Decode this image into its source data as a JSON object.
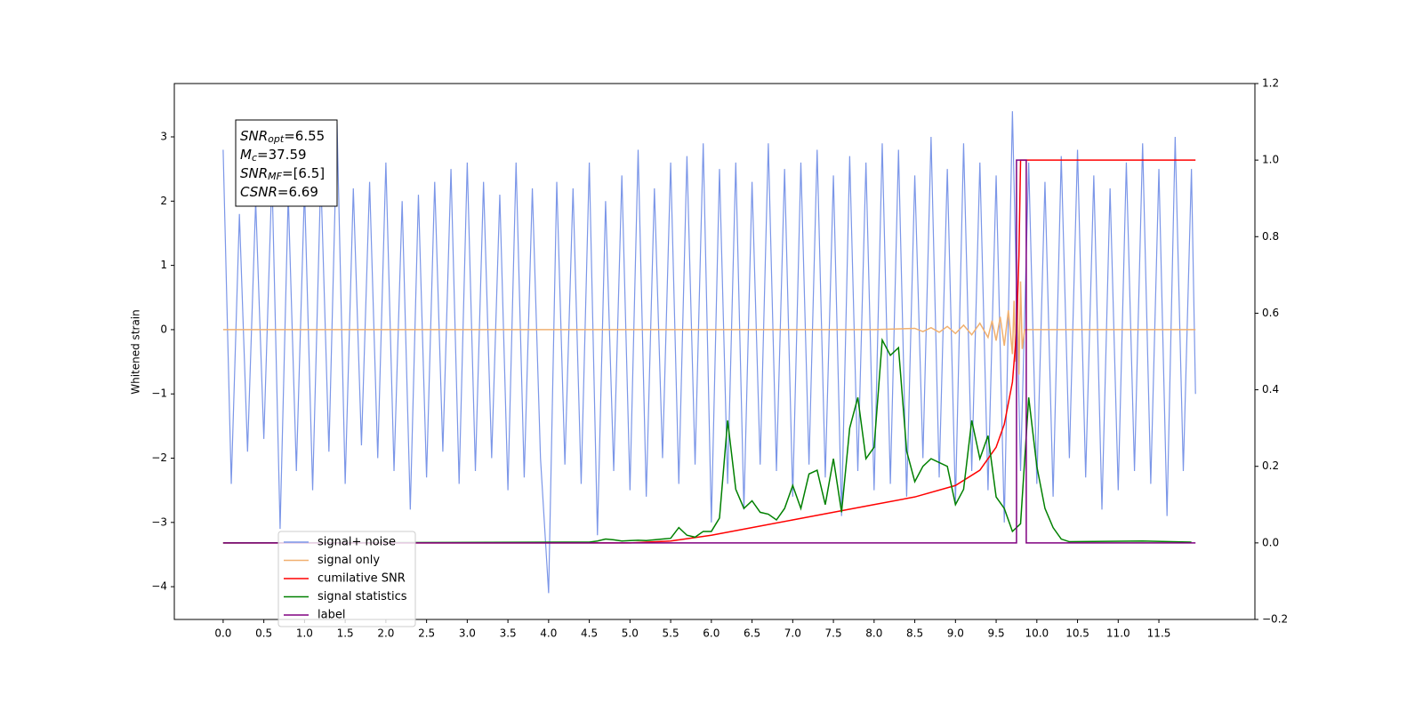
{
  "chart_data": {
    "type": "line",
    "ylabel": "Whitened strain",
    "annotations": [
      {
        "symbol": "SNR",
        "subscript": "opt",
        "text": "=6.55"
      },
      {
        "symbol": "M",
        "subscript": "c",
        "text": "=37.59"
      },
      {
        "symbol": "SNR",
        "subscript": "MF",
        "text": "=[6.5]"
      },
      {
        "symbol": "CSNR",
        "subscript": "",
        "text": "=6.69"
      }
    ],
    "xlim": [
      -0.6,
      12.68
    ],
    "xticks": [
      {
        "value": 0,
        "label": "0.0"
      },
      {
        "value": 0.5,
        "label": "0.5"
      },
      {
        "value": 1,
        "label": "1.0"
      },
      1.5,
      {
        "value": 2,
        "label": "2.0"
      },
      2.5,
      {
        "value": 3,
        "label": "3.0"
      },
      3.5,
      {
        "value": 4,
        "label": "4.0"
      },
      4.5,
      {
        "value": 5,
        "label": "5.0"
      },
      5.5,
      {
        "value": 6,
        "label": "6.0"
      },
      6.5,
      {
        "value": 7,
        "label": "7.0"
      },
      7.5,
      {
        "value": 8,
        "label": "8.0"
      },
      8.5,
      {
        "value": 9,
        "label": "9.0"
      },
      9.5,
      {
        "value": 10,
        "label": "10.0"
      },
      10.5,
      {
        "value": 11,
        "label": "11.0"
      },
      11.5
    ],
    "ylim": [
      -4.51,
      3.83
    ],
    "yticks": [
      {
        "value": -4,
        "label": "−4"
      },
      {
        "value": -3,
        "label": "−3"
      },
      {
        "value": -2,
        "label": "−2"
      },
      {
        "value": -1,
        "label": "−1"
      },
      0,
      1,
      2,
      3
    ],
    "y2lim": [
      -0.2,
      1.2
    ],
    "y2ticks": [
      {
        "value": -0.2,
        "label": "−0.2"
      },
      {
        "value": 0,
        "label": "0.0"
      },
      0.2,
      0.4,
      0.6,
      0.8,
      {
        "value": 1,
        "label": "1.0"
      },
      1.2
    ],
    "legend": "lower left",
    "series": [
      {
        "name": "signal+ noise",
        "color": "#7b96e8",
        "x": [
          0,
          0.1,
          0.2,
          0.3,
          0.4,
          0.5,
          0.6,
          0.7,
          0.8,
          0.9,
          1,
          1.1,
          1.2,
          1.3,
          1.4,
          1.5,
          1.6,
          1.7,
          1.8,
          1.9,
          2,
          2.1,
          2.2,
          2.3,
          2.4,
          2.5,
          2.6,
          2.7,
          2.8,
          2.9,
          3,
          3.1,
          3.2,
          3.3,
          3.4,
          3.5,
          3.6,
          3.7,
          3.8,
          3.9,
          4,
          4.1,
          4.2,
          4.3,
          4.4,
          4.5,
          4.6,
          4.7,
          4.8,
          4.9,
          5,
          5.1,
          5.2,
          5.3,
          5.4,
          5.5,
          5.6,
          5.7,
          5.8,
          5.9,
          6,
          6.1,
          6.2,
          6.3,
          6.4,
          6.5,
          6.6,
          6.7,
          6.8,
          6.9,
          7,
          7.1,
          7.2,
          7.3,
          7.4,
          7.5,
          7.6,
          7.7,
          7.8,
          7.9,
          8,
          8.1,
          8.2,
          8.3,
          8.4,
          8.5,
          8.6,
          8.7,
          8.8,
          8.9,
          9,
          9.1,
          9.2,
          9.3,
          9.4,
          9.5,
          9.6,
          9.7,
          9.8,
          9.9,
          10,
          10.1,
          10.2,
          10.3,
          10.4,
          10.5,
          10.6,
          10.7,
          10.8,
          10.9,
          11,
          11.1,
          11.2,
          11.3,
          11.4,
          11.5,
          11.6,
          11.7,
          11.8,
          11.9,
          11.95
        ],
        "values": [
          2.8,
          -2.4,
          1.8,
          -1.9,
          2.0,
          -1.7,
          2.4,
          -3.1,
          2.1,
          -2.2,
          2.2,
          -2.5,
          2.4,
          -1.9,
          3.2,
          -2.4,
          2.2,
          -1.8,
          2.3,
          -2.0,
          2.6,
          -2.2,
          2.0,
          -2.8,
          2.1,
          -2.3,
          2.3,
          -1.9,
          2.5,
          -2.4,
          2.6,
          -2.2,
          2.3,
          -2.0,
          2.1,
          -2.5,
          2.6,
          -2.3,
          2.2,
          -2.0,
          -4.1,
          2.3,
          -2.1,
          2.2,
          -2.4,
          2.6,
          -3.2,
          2.0,
          -2.2,
          2.4,
          -2.5,
          2.8,
          -2.6,
          2.2,
          -2.0,
          2.6,
          -2.4,
          2.7,
          -2.1,
          2.9,
          -3.0,
          2.5,
          -2.4,
          2.6,
          -2.8,
          2.3,
          -2.1,
          2.9,
          -2.2,
          2.5,
          -2.6,
          2.6,
          -2.1,
          2.8,
          -2.3,
          2.4,
          -2.9,
          2.7,
          -2.2,
          2.6,
          -2.5,
          2.9,
          -2.4,
          2.8,
          -2.6,
          2.4,
          -2.0,
          3.0,
          -2.3,
          2.5,
          -2.7,
          2.9,
          -2.2,
          2.6,
          -2.5,
          2.4,
          -3.0,
          3.4,
          -2.2,
          2.6,
          -2.4,
          2.3,
          -2.6,
          2.7,
          -2.0,
          2.8,
          -2.3,
          2.4,
          -2.8,
          2.2,
          -2.5,
          2.6,
          -2.2,
          2.9,
          -2.4,
          2.5,
          -2.9,
          3.0,
          -2.2,
          2.5,
          -1.0
        ]
      },
      {
        "name": "signal only",
        "color": "#f0b070",
        "x": [
          0,
          8.0,
          8.5,
          8.6,
          8.7,
          8.8,
          8.9,
          9.0,
          9.1,
          9.2,
          9.3,
          9.4,
          9.45,
          9.5,
          9.55,
          9.6,
          9.65,
          9.7,
          9.72,
          9.74,
          9.76,
          9.78,
          9.8,
          9.82,
          9.85,
          11.95
        ],
        "values": [
          0,
          0,
          0.02,
          -0.03,
          0.03,
          -0.04,
          0.05,
          -0.06,
          0.07,
          -0.08,
          0.1,
          -0.12,
          0.14,
          -0.17,
          0.2,
          -0.25,
          0.3,
          -0.38,
          0.45,
          -0.5,
          0.6,
          -0.7,
          0.75,
          -0.3,
          0,
          0
        ]
      },
      {
        "name": "cumilative SNR",
        "color": "#ff0000",
        "axis": "y2",
        "x": [
          0,
          5,
          5.5,
          6,
          6.5,
          7,
          7.5,
          8,
          8.5,
          9,
          9.3,
          9.5,
          9.6,
          9.7,
          9.75,
          9.78,
          9.8,
          11.95
        ],
        "values": [
          0,
          0,
          0.005,
          0.02,
          0.04,
          0.06,
          0.08,
          0.1,
          0.12,
          0.15,
          0.19,
          0.25,
          0.31,
          0.42,
          0.55,
          0.75,
          1.0,
          1.0
        ]
      },
      {
        "name": "signal statistics",
        "color": "#008000",
        "axis": "y2",
        "x": [
          0,
          4.5,
          4.6,
          4.7,
          4.8,
          4.9,
          5,
          5.1,
          5.2,
          5.3,
          5.4,
          5.5,
          5.6,
          5.7,
          5.8,
          5.9,
          6,
          6.1,
          6.2,
          6.3,
          6.4,
          6.5,
          6.6,
          6.7,
          6.8,
          6.9,
          7,
          7.1,
          7.2,
          7.3,
          7.4,
          7.5,
          7.6,
          7.7,
          7.8,
          7.9,
          8,
          8.1,
          8.2,
          8.3,
          8.4,
          8.5,
          8.6,
          8.7,
          8.8,
          8.9,
          9,
          9.1,
          9.2,
          9.3,
          9.4,
          9.5,
          9.6,
          9.7,
          9.8,
          9.9,
          10,
          10.1,
          10.2,
          10.3,
          10.4,
          11.3,
          11.9
        ],
        "values": [
          0,
          0.002,
          0.005,
          0.01,
          0.008,
          0.005,
          0.006,
          0.007,
          0.006,
          0.008,
          0.01,
          0.012,
          0.04,
          0.02,
          0.015,
          0.03,
          0.03,
          0.065,
          0.32,
          0.14,
          0.09,
          0.11,
          0.08,
          0.075,
          0.06,
          0.09,
          0.15,
          0.09,
          0.18,
          0.19,
          0.1,
          0.22,
          0.08,
          0.3,
          0.38,
          0.22,
          0.25,
          0.53,
          0.49,
          0.51,
          0.24,
          0.16,
          0.2,
          0.22,
          0.21,
          0.2,
          0.1,
          0.14,
          0.32,
          0.22,
          0.28,
          0.12,
          0.09,
          0.03,
          0.05,
          0.38,
          0.2,
          0.09,
          0.04,
          0.01,
          0.003,
          0.005,
          0.002
        ]
      },
      {
        "name": "label",
        "color": "#800080",
        "axis": "y2",
        "x": [
          0,
          9.75,
          9.75,
          9.87,
          9.87,
          11.95
        ],
        "values": [
          0,
          0,
          1,
          1,
          0,
          0
        ]
      }
    ]
  }
}
